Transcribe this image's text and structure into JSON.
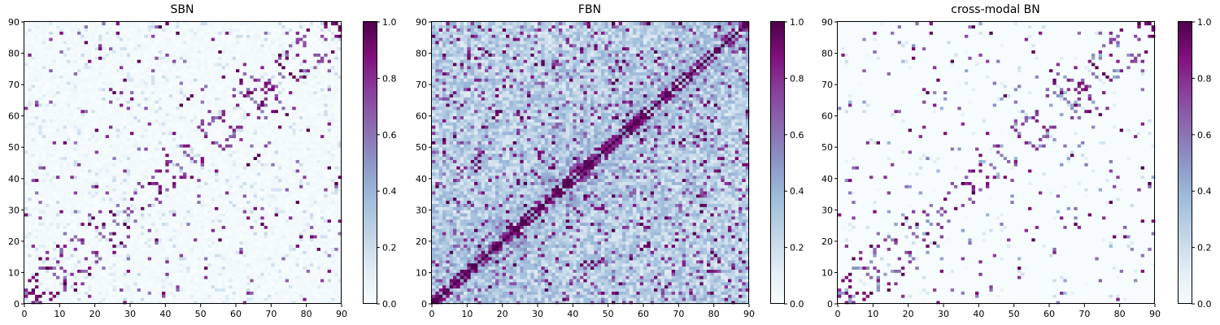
{
  "chart_data": [
    {
      "type": "heatmap",
      "title": "SBN",
      "xlabel": "",
      "ylabel": "",
      "xlim": [
        0,
        90
      ],
      "ylim": [
        0,
        90
      ],
      "x_ticks": [
        "0",
        "10",
        "20",
        "30",
        "40",
        "50",
        "60",
        "70",
        "80",
        "90"
      ],
      "y_ticks": [
        "0",
        "10",
        "20",
        "30",
        "40",
        "50",
        "60",
        "70",
        "80",
        "90"
      ],
      "matrix_size": 90,
      "value_range": [
        0,
        1
      ],
      "colormap": "BuPu",
      "colorbar_ticks": [
        "0.0",
        "0.2",
        "0.4",
        "0.6",
        "0.8",
        "1.0"
      ],
      "description_values": {
        "background_level": 0.02,
        "strong_connection_level": 1.0,
        "density": "sparse"
      }
    },
    {
      "type": "heatmap",
      "title": "FBN",
      "xlabel": "",
      "ylabel": "",
      "xlim": [
        0,
        90
      ],
      "ylim": [
        0,
        90
      ],
      "x_ticks": [
        "0",
        "10",
        "20",
        "30",
        "40",
        "50",
        "60",
        "70",
        "80",
        "90"
      ],
      "y_ticks": [
        "0",
        "10",
        "20",
        "30",
        "40",
        "50",
        "60",
        "70",
        "80",
        "90"
      ],
      "matrix_size": 90,
      "value_range": [
        0,
        1
      ],
      "colormap": "BuPu",
      "colorbar_ticks": [
        "0.0",
        "0.2",
        "0.4",
        "0.6",
        "0.8",
        "1.0"
      ],
      "description_values": {
        "background_level": 0.3,
        "strong_connection_level": 1.0,
        "density": "dense"
      }
    },
    {
      "type": "heatmap",
      "title": "cross-modal BN",
      "xlabel": "",
      "ylabel": "",
      "xlim": [
        0,
        90
      ],
      "ylim": [
        0,
        90
      ],
      "x_ticks": [
        "0",
        "10",
        "20",
        "30",
        "40",
        "50",
        "60",
        "70",
        "80",
        "90"
      ],
      "y_ticks": [
        "0",
        "10",
        "20",
        "30",
        "40",
        "50",
        "60",
        "70",
        "80",
        "90"
      ],
      "matrix_size": 90,
      "value_range": [
        0,
        1
      ],
      "colormap": "BuPu",
      "colorbar_ticks": [
        "0.0",
        "0.2",
        "0.4",
        "0.6",
        "0.8",
        "1.0"
      ],
      "description_values": {
        "background_level": 0.01,
        "strong_connection_level": 1.0,
        "density": "very sparse"
      }
    }
  ],
  "colors": {
    "bupu_low": "#f7fcfd",
    "bupu_mid": "#8c96c6",
    "bupu_high": "#4d004b"
  }
}
